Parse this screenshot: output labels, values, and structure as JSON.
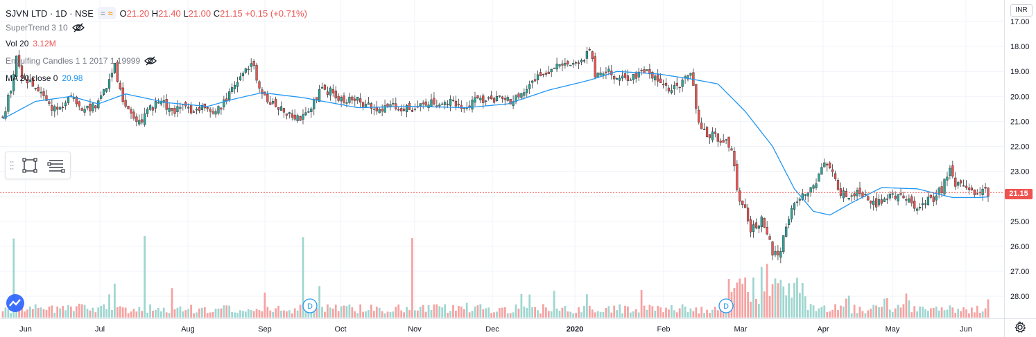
{
  "header": {
    "symbol": "SJVN LTD · 1D · NSE",
    "ohlc": {
      "open_label": "O",
      "open": "21.20",
      "high_label": "H",
      "high": "21.40",
      "low_label": "L",
      "low": "21.00",
      "close_label": "C",
      "close": "21.15",
      "change": "+0.15 (+0.71%)"
    }
  },
  "indicators": {
    "supertrend": "SuperTrend 3 10",
    "volume_name": "Vol 20",
    "volume_value": "3.12M",
    "engulfing": "Engulfing Candles 1 1 2017 1 19999",
    "ma_name": "MA 20 close 0",
    "ma_value": "20.98"
  },
  "price_axis": {
    "currency": "INR",
    "last_price": "21.15",
    "ticks": [
      "28.00",
      "27.00",
      "26.00",
      "25.00",
      "24.00",
      "23.00",
      "22.00",
      "21.00",
      "20.00",
      "19.00",
      "18.00",
      "17.00"
    ]
  },
  "time_axis": {
    "labels": [
      "Jun",
      "Jul",
      "Aug",
      "Sep",
      "Oct",
      "Nov",
      "Dec",
      "2020",
      "Feb",
      "Mar",
      "Apr",
      "May",
      "Jun"
    ]
  },
  "markers": [
    {
      "label": "D"
    },
    {
      "label": "D"
    }
  ],
  "colors": {
    "up": "#26a69a",
    "down": "#ef5350",
    "ma": "#2196f3",
    "vol_up": "#9fd6d0",
    "vol_down": "#f5a3a2",
    "grid": "#f0f3fa",
    "last_price_line": "#ef5350"
  },
  "icons": [
    "eye-off-icon",
    "rectangle-tool-icon",
    "text-lines-tool-icon",
    "grip-icon",
    "gear-icon"
  ],
  "chart_data": {
    "type": "candlestick",
    "title": "SJVN LTD · 1D · NSE",
    "ylim": [
      16.6,
      28.2
    ],
    "y_ticks": [
      17,
      18,
      19,
      20,
      21,
      22,
      23,
      24,
      25,
      26,
      27,
      28
    ],
    "x_labels": [
      "Jun",
      "Jul",
      "Aug",
      "Sep",
      "Oct",
      "Nov",
      "Dec",
      "2020",
      "Feb",
      "Mar",
      "Apr",
      "May",
      "Jun"
    ],
    "ma_anchors": [
      [
        0,
        24.1
      ],
      [
        12,
        24.8
      ],
      [
        25,
        25.0
      ],
      [
        35,
        24.7
      ],
      [
        45,
        25.1
      ],
      [
        60,
        24.75
      ],
      [
        75,
        24.6
      ],
      [
        85,
        24.9
      ],
      [
        95,
        25.15
      ],
      [
        110,
        24.95
      ],
      [
        130,
        24.55
      ],
      [
        150,
        24.6
      ],
      [
        170,
        24.55
      ],
      [
        185,
        24.7
      ],
      [
        200,
        25.25
      ],
      [
        215,
        25.65
      ],
      [
        225,
        26.0
      ],
      [
        240,
        25.9
      ],
      [
        252,
        25.7
      ],
      [
        262,
        25.5
      ],
      [
        272,
        24.4
      ],
      [
        282,
        23.0
      ],
      [
        290,
        21.3
      ],
      [
        297,
        20.4
      ],
      [
        303,
        20.25
      ],
      [
        312,
        20.8
      ],
      [
        322,
        21.35
      ],
      [
        335,
        21.3
      ],
      [
        348,
        20.95
      ],
      [
        358,
        20.95
      ],
      [
        361,
        20.98
      ]
    ],
    "price_anchors": [
      [
        0,
        24.1
      ],
      [
        3,
        25.3
      ],
      [
        5,
        26.5
      ],
      [
        7,
        25.7
      ],
      [
        10,
        25.6
      ],
      [
        14,
        25.0
      ],
      [
        18,
        24.6
      ],
      [
        22,
        24.7
      ],
      [
        26,
        25.0
      ],
      [
        30,
        24.4
      ],
      [
        34,
        24.6
      ],
      [
        38,
        25.5
      ],
      [
        41,
        26.3
      ],
      [
        43,
        25.2
      ],
      [
        46,
        24.5
      ],
      [
        50,
        24.0
      ],
      [
        54,
        24.5
      ],
      [
        58,
        24.8
      ],
      [
        62,
        24.3
      ],
      [
        66,
        24.6
      ],
      [
        70,
        24.4
      ],
      [
        74,
        24.5
      ],
      [
        78,
        24.3
      ],
      [
        82,
        24.9
      ],
      [
        86,
        25.6
      ],
      [
        90,
        26.1
      ],
      [
        92,
        26.3
      ],
      [
        94,
        25.2
      ],
      [
        97,
        24.8
      ],
      [
        101,
        24.5
      ],
      [
        105,
        24.2
      ],
      [
        109,
        24.1
      ],
      [
        113,
        24.6
      ],
      [
        117,
        25.4
      ],
      [
        121,
        25.1
      ],
      [
        125,
        24.8
      ],
      [
        129,
        24.9
      ],
      [
        133,
        24.7
      ],
      [
        137,
        24.5
      ],
      [
        141,
        24.6
      ],
      [
        145,
        24.5
      ],
      [
        149,
        24.5
      ],
      [
        153,
        24.6
      ],
      [
        157,
        24.7
      ],
      [
        161,
        24.8
      ],
      [
        165,
        24.7
      ],
      [
        169,
        24.6
      ],
      [
        173,
        24.8
      ],
      [
        177,
        24.8
      ],
      [
        181,
        24.9
      ],
      [
        185,
        24.8
      ],
      [
        189,
        24.9
      ],
      [
        193,
        25.4
      ],
      [
        197,
        25.8
      ],
      [
        201,
        26.1
      ],
      [
        205,
        26.2
      ],
      [
        209,
        26.3
      ],
      [
        213,
        26.6
      ],
      [
        215,
        26.8
      ],
      [
        217,
        25.9
      ],
      [
        221,
        26.0
      ],
      [
        225,
        25.8
      ],
      [
        229,
        25.7
      ],
      [
        233,
        25.9
      ],
      [
        237,
        26.0
      ],
      [
        241,
        25.5
      ],
      [
        245,
        25.3
      ],
      [
        249,
        25.6
      ],
      [
        252,
        25.9
      ],
      [
        255,
        24.0
      ],
      [
        258,
        23.5
      ],
      [
        261,
        23.4
      ],
      [
        264,
        23.2
      ],
      [
        267,
        22.9
      ],
      [
        269,
        21.2
      ],
      [
        272,
        20.4
      ],
      [
        274,
        19.6
      ],
      [
        276,
        19.8
      ],
      [
        278,
        20.1
      ],
      [
        280,
        19.5
      ],
      [
        282,
        18.8
      ],
      [
        284,
        18.6
      ],
      [
        286,
        19.3
      ],
      [
        288,
        20.2
      ],
      [
        290,
        20.7
      ],
      [
        292,
        21.0
      ],
      [
        295,
        21.3
      ],
      [
        298,
        21.6
      ],
      [
        300,
        22.2
      ],
      [
        302,
        22.3
      ],
      [
        304,
        22.0
      ],
      [
        306,
        21.3
      ],
      [
        308,
        21.1
      ],
      [
        311,
        21.0
      ],
      [
        314,
        21.1
      ],
      [
        317,
        20.9
      ],
      [
        320,
        20.7
      ],
      [
        323,
        20.8
      ],
      [
        326,
        21.1
      ],
      [
        329,
        21.0
      ],
      [
        332,
        20.8
      ],
      [
        335,
        20.6
      ],
      [
        338,
        20.8
      ],
      [
        341,
        20.9
      ],
      [
        344,
        21.3
      ],
      [
        347,
        22.0
      ],
      [
        349,
        21.5
      ],
      [
        352,
        21.3
      ],
      [
        355,
        21.15
      ]
    ],
    "volume_max_m": 19.2,
    "last_price": 21.15,
    "ma_last": 20.98,
    "last_volume_m": 3.12
  }
}
